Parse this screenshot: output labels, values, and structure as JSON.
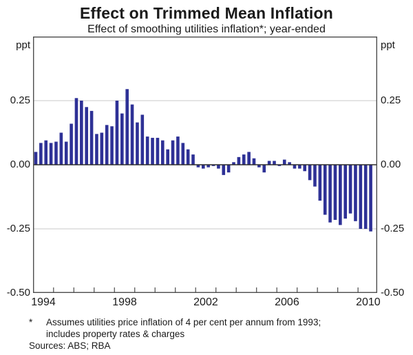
{
  "title": "Effect on Trimmed Mean Inflation",
  "subtitle": "Effect of smoothing utilities inflation*; year-ended",
  "y_axis": {
    "unit": "ppt"
  },
  "footnote": {
    "marker": "*",
    "line1": "Assumes utilities price inflation of 4 per cent per annum from 1993;",
    "line2": "includes property rates & charges"
  },
  "sources": "Sources: ABS; RBA",
  "chart_data": {
    "type": "bar",
    "title": "Effect on Trimmed Mean Inflation",
    "subtitle": "Effect of smoothing utilities inflation*; year-ended",
    "ylabel": "ppt",
    "ylim": [
      -0.5,
      0.5
    ],
    "gridlines": [
      0.25,
      -0.25
    ],
    "grid_on": true,
    "legend": "none",
    "bar_color": "#2e3196",
    "frame_color": "#4c4c4c",
    "zero_line_color": "#2b2b2b",
    "gridline_color": "#c9c9c9",
    "y_tick_labels": [
      {
        "label": "0.25",
        "value": 0.25
      },
      {
        "label": "0.00",
        "value": 0.0
      },
      {
        "label": "-0.25",
        "value": -0.25
      },
      {
        "label": "-0.50",
        "value": -0.5
      }
    ],
    "x_start_year": 1994,
    "x_year_ticks": [
      1995,
      1996,
      1997,
      1998,
      1999,
      2000,
      2001,
      2002,
      2003,
      2004,
      2005,
      2006,
      2007,
      2008,
      2009,
      2010
    ],
    "x_year_labels": [
      "1994",
      "1998",
      "2002",
      "2006",
      "2010"
    ],
    "quarters": [
      "1994Q1",
      "1994Q2",
      "1994Q3",
      "1994Q4",
      "1995Q1",
      "1995Q2",
      "1995Q3",
      "1995Q4",
      "1996Q1",
      "1996Q2",
      "1996Q3",
      "1996Q4",
      "1997Q1",
      "1997Q2",
      "1997Q3",
      "1997Q4",
      "1998Q1",
      "1998Q2",
      "1998Q3",
      "1998Q4",
      "1999Q1",
      "1999Q2",
      "1999Q3",
      "1999Q4",
      "2000Q1",
      "2000Q2",
      "2000Q3",
      "2000Q4",
      "2001Q1",
      "2001Q2",
      "2001Q3",
      "2001Q4",
      "2002Q1",
      "2002Q2",
      "2002Q3",
      "2002Q4",
      "2003Q1",
      "2003Q2",
      "2003Q3",
      "2003Q4",
      "2004Q1",
      "2004Q2",
      "2004Q3",
      "2004Q4",
      "2005Q1",
      "2005Q2",
      "2005Q3",
      "2005Q4",
      "2006Q1",
      "2006Q2",
      "2006Q3",
      "2006Q4",
      "2007Q1",
      "2007Q2",
      "2007Q3",
      "2007Q4",
      "2008Q1",
      "2008Q2",
      "2008Q3",
      "2008Q4",
      "2009Q1",
      "2009Q2",
      "2009Q3",
      "2009Q4",
      "2010Q1",
      "2010Q2",
      "2010Q3"
    ],
    "values": [
      0.05,
      0.085,
      0.095,
      0.085,
      0.09,
      0.125,
      0.09,
      0.16,
      0.26,
      0.25,
      0.225,
      0.21,
      0.12,
      0.125,
      0.155,
      0.15,
      0.25,
      0.2,
      0.295,
      0.235,
      0.165,
      0.195,
      0.11,
      0.105,
      0.105,
      0.095,
      0.06,
      0.095,
      0.11,
      0.085,
      0.06,
      0.04,
      -0.01,
      -0.015,
      -0.01,
      -0.005,
      -0.015,
      -0.04,
      -0.03,
      0.01,
      0.03,
      0.04,
      0.05,
      0.025,
      -0.01,
      -0.03,
      0.015,
      0.015,
      -0.005,
      0.02,
      0.01,
      -0.015,
      -0.015,
      -0.025,
      -0.06,
      -0.085,
      -0.14,
      -0.195,
      -0.225,
      -0.215,
      -0.235,
      -0.21,
      -0.19,
      -0.22,
      -0.25,
      -0.25,
      -0.26
    ]
  }
}
